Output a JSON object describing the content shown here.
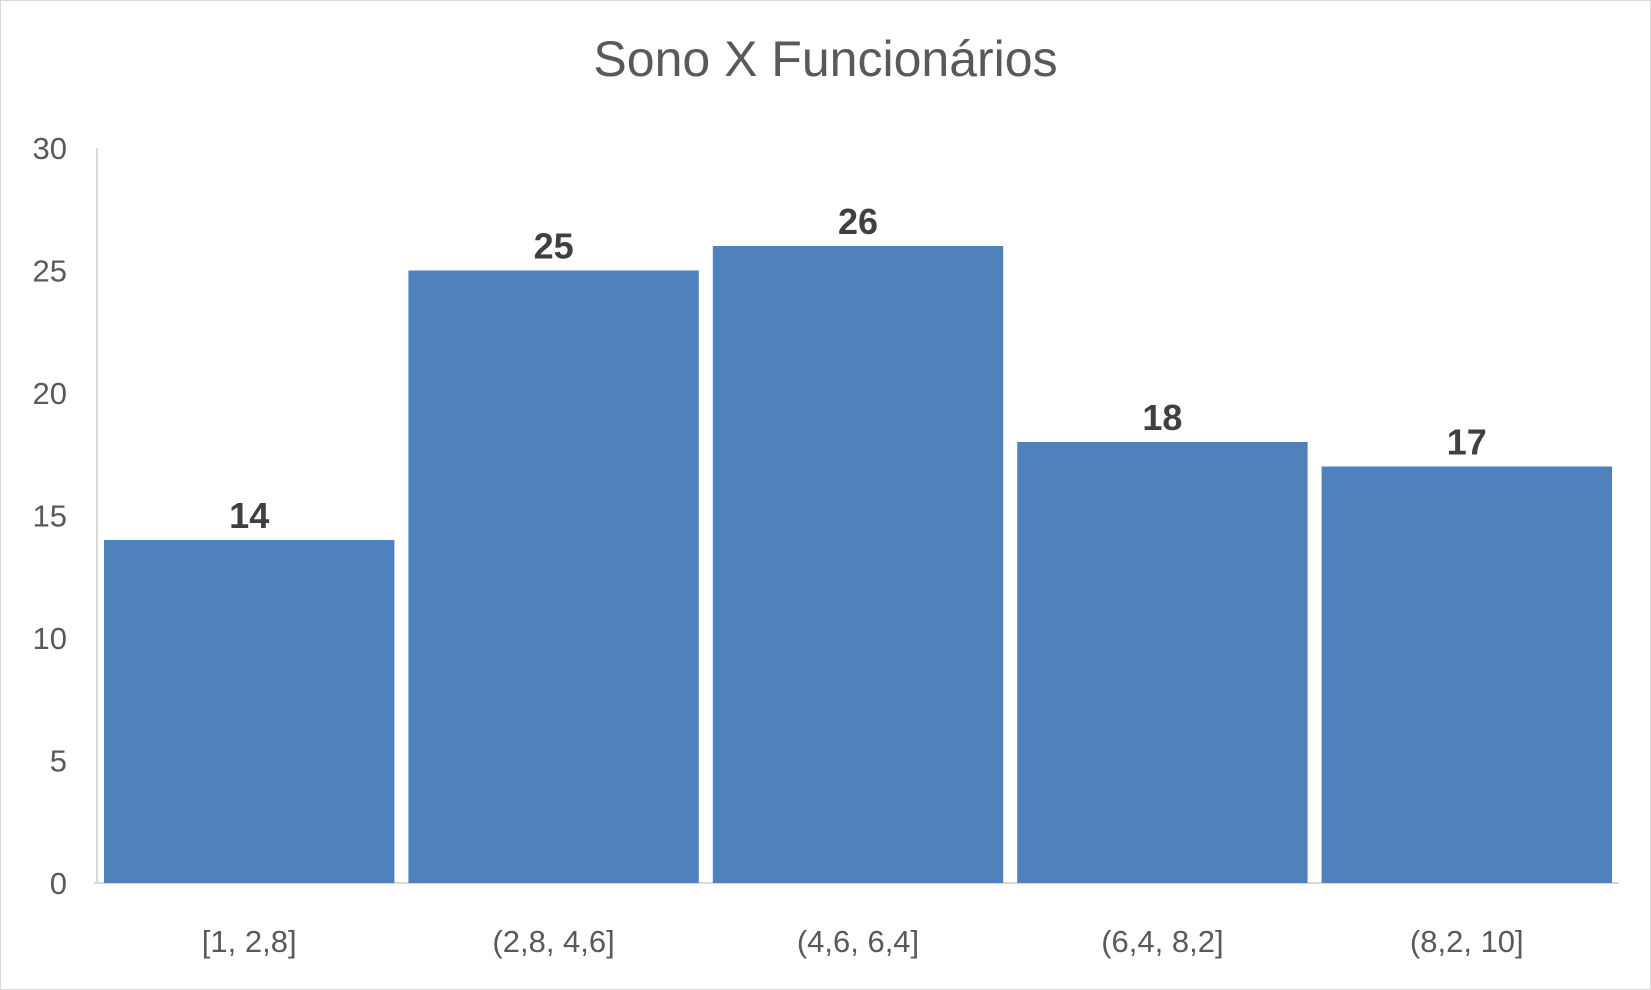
{
  "chart_data": {
    "type": "bar",
    "title": "Sono X Funcionários",
    "xlabel": "",
    "ylabel": "",
    "categories": [
      "[1, 2,8]",
      "(2,8, 4,6]",
      "(4,6, 6,4]",
      "(6,4, 8,2]",
      "(8,2, 10]"
    ],
    "values": [
      14,
      25,
      26,
      18,
      17
    ],
    "ylim": [
      0,
      30
    ],
    "yticks": [
      0,
      5,
      10,
      15,
      20,
      25,
      30
    ],
    "grid": false,
    "legend": "none",
    "data_labels": true,
    "bar_color": "#4f81bd",
    "axis_color": "#d9d9d9",
    "text_color": "#595959"
  }
}
